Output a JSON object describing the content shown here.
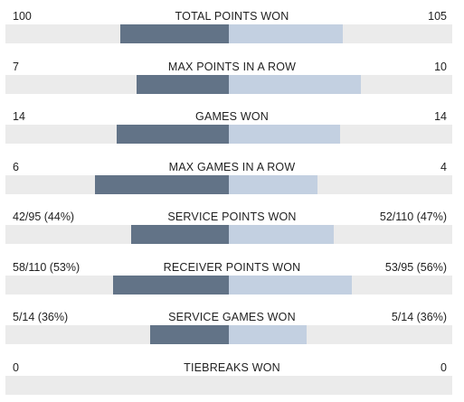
{
  "stats": [
    {
      "name": "TOTAL POINTS WON",
      "left": "100",
      "right": "105",
      "left_share": 0.487,
      "right_share": 0.512
    },
    {
      "name": "MAX POINTS IN A ROW",
      "left": "7",
      "right": "10",
      "left_share": 0.413,
      "right_share": 0.59
    },
    {
      "name": "GAMES WON",
      "left": "14",
      "right": "14",
      "left_share": 0.502,
      "right_share": 0.498
    },
    {
      "name": "MAX GAMES IN A ROW",
      "left": "6",
      "right": "4",
      "left_share": 0.599,
      "right_share": 0.397
    },
    {
      "name": "SERVICE POINTS WON",
      "left": "42/95 (44%)",
      "right": "52/110 (47%)",
      "left_share": 0.437,
      "right_share": 0.47
    },
    {
      "name": "RECEIVER POINTS WON",
      "left": "58/110 (53%)",
      "right": "53/95 (56%)",
      "left_share": 0.518,
      "right_share": 0.551
    },
    {
      "name": "SERVICE GAMES WON",
      "left": "5/14 (36%)",
      "right": "5/14 (36%)",
      "left_share": 0.352,
      "right_share": 0.348
    },
    {
      "name": "TIEBREAKS WON",
      "left": "0",
      "right": "0",
      "left_share": 0,
      "right_share": 0
    }
  ],
  "colors": {
    "left_bar": "#627387",
    "right_bar": "#c3d0e1",
    "track": "#ebebeb"
  }
}
